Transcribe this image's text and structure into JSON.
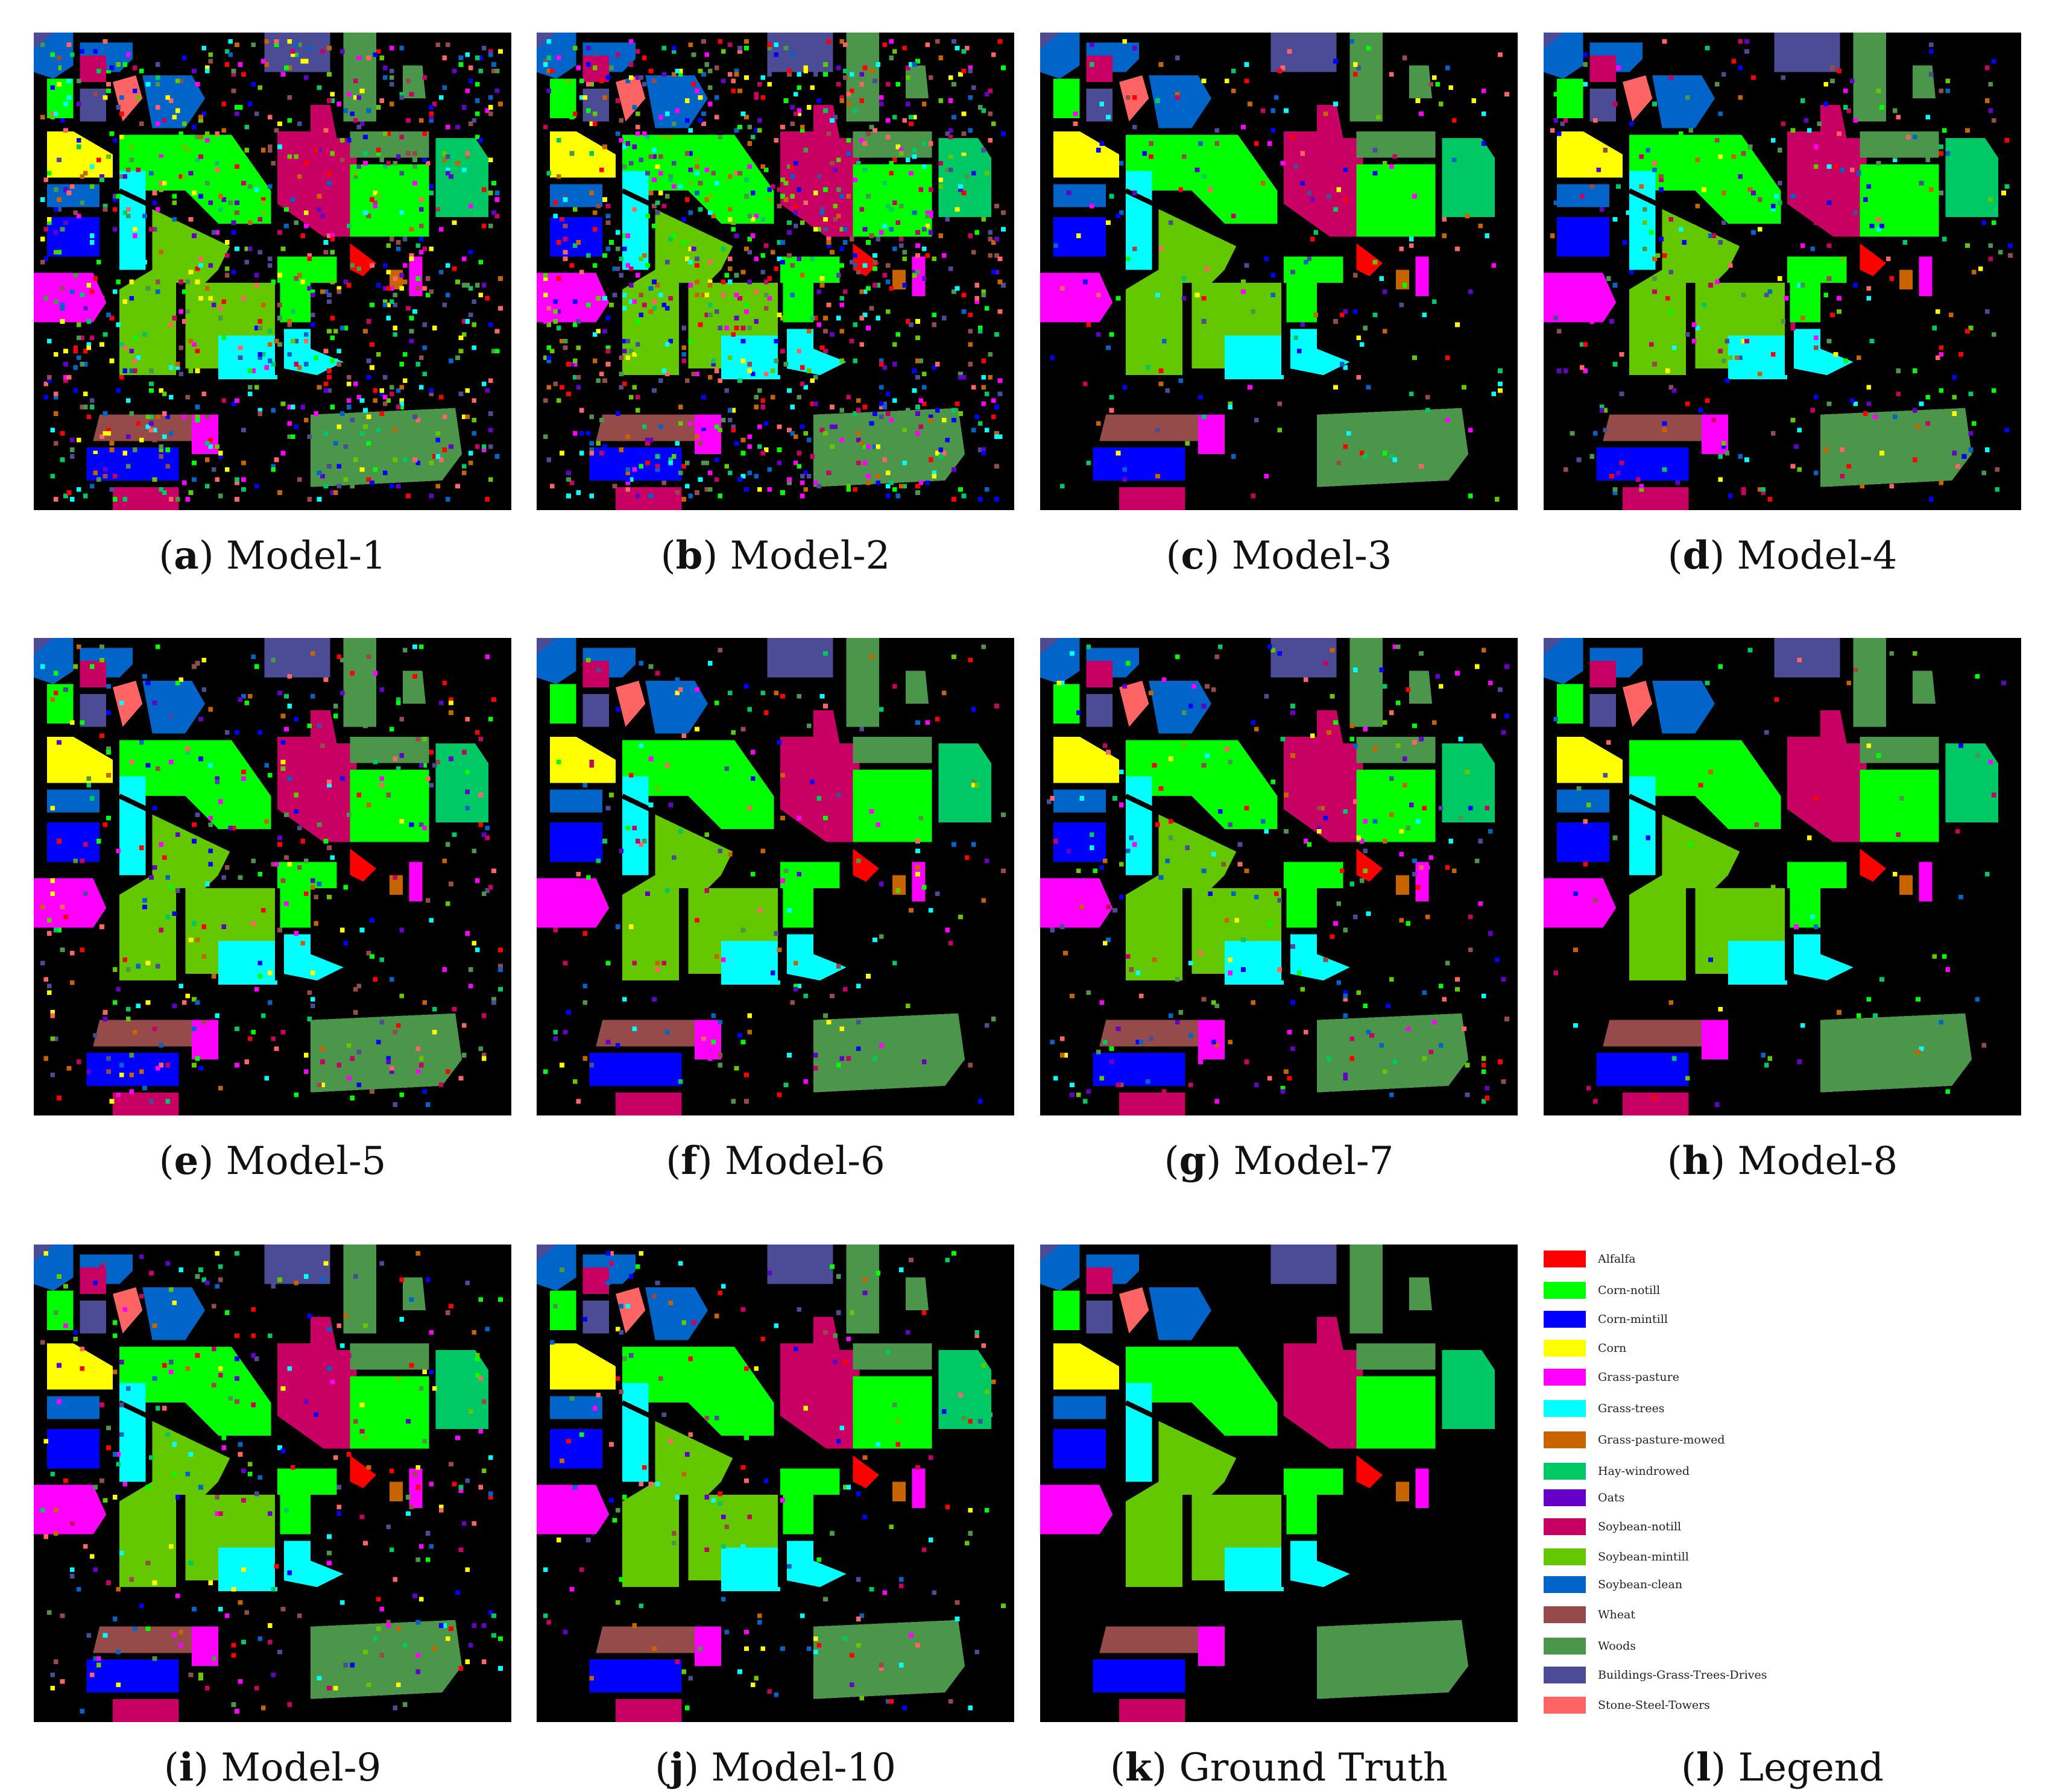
{
  "panels": [
    {
      "letter": "a",
      "label": "Model-1",
      "noise": 0.38
    },
    {
      "letter": "b",
      "label": "Model-2",
      "noise": 0.42
    },
    {
      "letter": "c",
      "label": "Model-3",
      "noise": 0.09
    },
    {
      "letter": "d",
      "label": "Model-4",
      "noise": 0.14
    },
    {
      "letter": "e",
      "label": "Model-5",
      "noise": 0.16
    },
    {
      "letter": "f",
      "label": "Model-6",
      "noise": 0.08
    },
    {
      "letter": "g",
      "label": "Model-7",
      "noise": 0.12
    },
    {
      "letter": "h",
      "label": "Model-8",
      "noise": 0.03
    },
    {
      "letter": "i",
      "label": "Model-9",
      "noise": 0.13
    },
    {
      "letter": "j",
      "label": "Model-10",
      "noise": 0.08
    },
    {
      "letter": "k",
      "label": "Ground Truth",
      "noise": 0.0
    }
  ],
  "legend_caption": {
    "letter": "l",
    "label": "Legend"
  },
  "legend": [
    {
      "label": "Alfalfa",
      "color": "#ff0000"
    },
    {
      "label": "Corn-notill",
      "color": "#00ff00"
    },
    {
      "label": "Corn-mintill",
      "color": "#0000ff"
    },
    {
      "label": "Corn",
      "color": "#ffff00"
    },
    {
      "label": "Grass-pasture",
      "color": "#ff00ff"
    },
    {
      "label": "Grass-trees",
      "color": "#00ffff"
    },
    {
      "label": "Grass-pasture-mowed",
      "color": "#c86400"
    },
    {
      "label": "Hay-windrowed",
      "color": "#00c864"
    },
    {
      "label": "Oats",
      "color": "#6400c8"
    },
    {
      "label": "Soybean-notill",
      "color": "#c80064"
    },
    {
      "label": "Soybean-mintill",
      "color": "#64c800"
    },
    {
      "label": "Soybean-clean",
      "color": "#0064c8"
    },
    {
      "label": "Wheat",
      "color": "#964b4b"
    },
    {
      "label": "Woods",
      "color": "#4b964b"
    },
    {
      "label": "Buildings-Grass-Trees-Drives",
      "color": "#4b4b96"
    },
    {
      "label": "Stone-Steel-Towers",
      "color": "#ff6464"
    }
  ]
}
